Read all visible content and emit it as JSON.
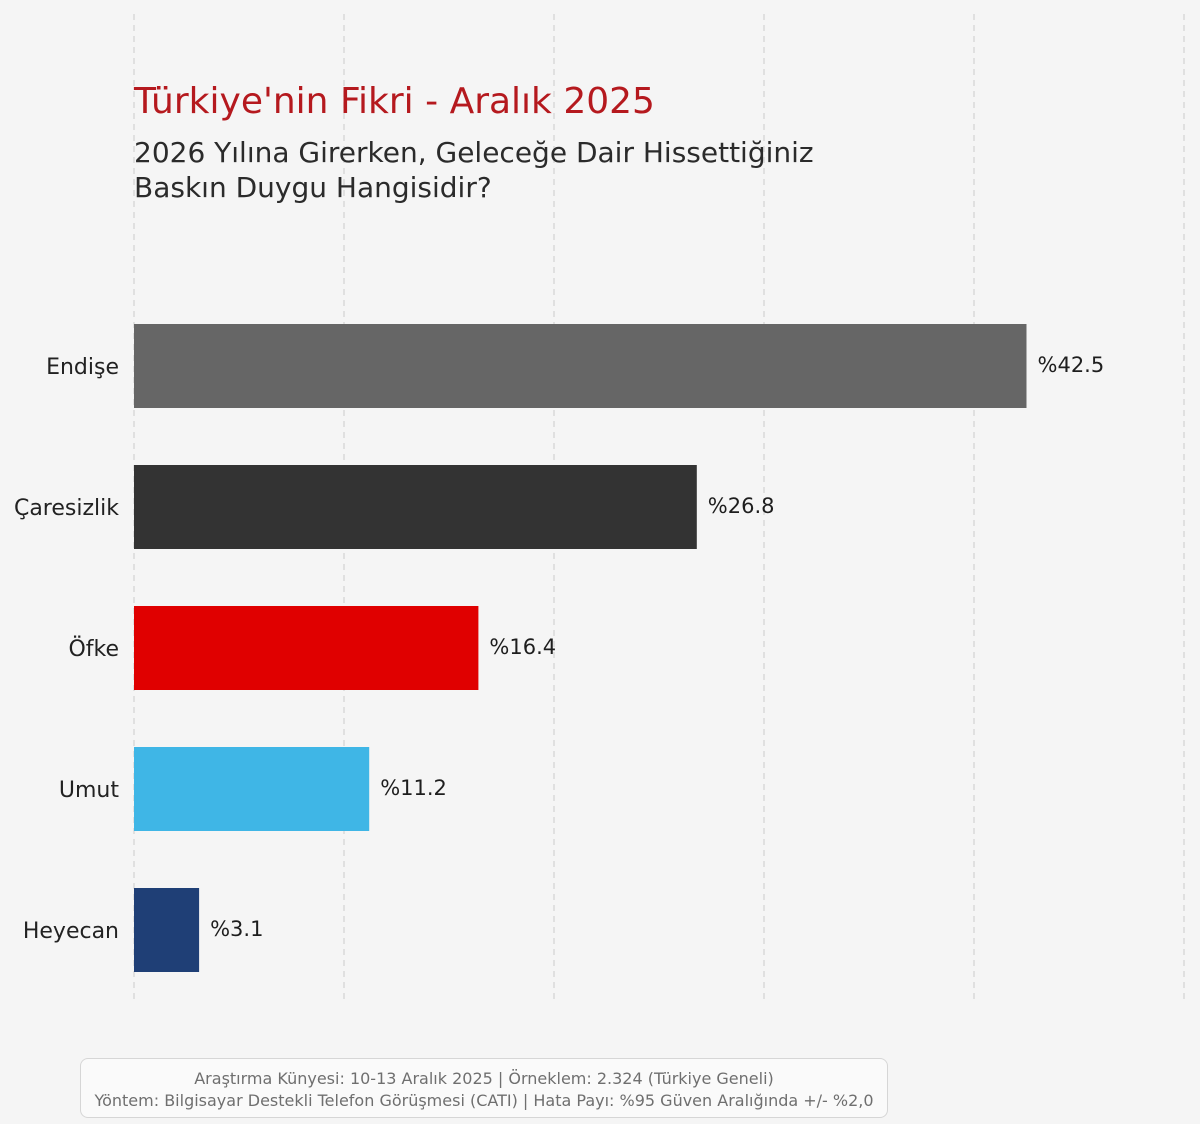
{
  "chart_data": {
    "type": "bar",
    "orientation": "horizontal",
    "title": "Türkiye'nin Fikri - Aralık 2025",
    "subtitle_lines": [
      "2026 Yılına Girerken, Geleceğe Dair Hissettiğiniz",
      "Baskın Duygu Hangisidir?"
    ],
    "categories": [
      "Endişe",
      "Çaresizlik",
      "Öfke",
      "Umut",
      "Heyecan"
    ],
    "values": [
      42.5,
      26.8,
      16.4,
      11.2,
      3.1
    ],
    "value_labels": [
      "%42.5",
      "%26.8",
      "%16.4",
      "%11.2",
      "%3.1"
    ],
    "colors": [
      "#666666",
      "#333333",
      "#e00000",
      "#3fb6e6",
      "#1f3f76"
    ],
    "xlim": [
      0,
      50
    ],
    "grid_vertical": true,
    "xlabel": "",
    "ylabel": ""
  },
  "footer": {
    "line1": "Araştırma Künyesi: 10-13 Aralık 2025 | Örneklem: 2.324 (Türkiye Geneli)",
    "line2": "Yöntem: Bilgisayar Destekli Telefon Görüşmesi (CATI) | Hata Payı: %95 Güven Aralığında +/- %2,0"
  },
  "colors": {
    "background": "#f5f5f5",
    "title": "#b5191e",
    "subtitle": "#2b2b2b",
    "grid": "#d4d4d4"
  }
}
